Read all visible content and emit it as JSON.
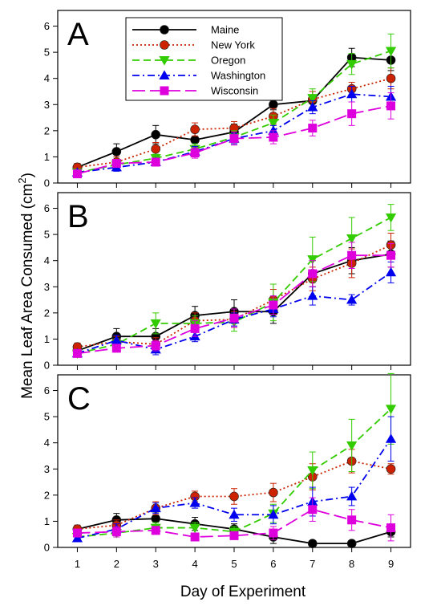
{
  "chart_data": {
    "type": "line",
    "xlabel": "Day of Experiment",
    "ylabel": "Mean Leaf Area Consumed (cm",
    "ylabel_superscript": "2",
    "ylabel_suffix": ")",
    "x": [
      1,
      2,
      3,
      4,
      5,
      6,
      7,
      8,
      9
    ],
    "x_tick_labels": [
      "1",
      "2",
      "3",
      "4",
      "5",
      "6",
      "7",
      "8",
      "9"
    ],
    "ylim": [
      0,
      6.6
    ],
    "y_ticks": [
      0,
      1,
      2,
      3,
      4,
      5,
      6
    ],
    "y_tick_labels": [
      "0",
      "1",
      "2",
      "3",
      "4",
      "5",
      "6"
    ],
    "legend": {
      "position": "top-left",
      "entries": [
        "Maine",
        "New York",
        "Oregon",
        "Washington",
        "Wisconsin"
      ]
    },
    "series_styles": [
      {
        "name": "Maine",
        "color": "#000000",
        "marker": "circle",
        "dash": "none"
      },
      {
        "name": "New York",
        "color": "#cc2200",
        "marker": "circle",
        "dash": "dotted"
      },
      {
        "name": "Oregon",
        "color": "#33cc00",
        "marker": "triangle-down",
        "dash": "dashed"
      },
      {
        "name": "Washington",
        "color": "#0000ee",
        "marker": "triangle-up",
        "dash": "dashdot"
      },
      {
        "name": "Wisconsin",
        "color": "#dd00dd",
        "marker": "square",
        "dash": "longdash"
      }
    ],
    "panels": [
      {
        "label": "A",
        "show_legend": true,
        "series": [
          {
            "name": "Maine",
            "values": [
              0.6,
              1.2,
              1.85,
              1.65,
              1.95,
              3.0,
              3.15,
              4.8,
              4.7
            ],
            "errors": [
              0.15,
              0.3,
              0.35,
              0.3,
              0.3,
              0.2,
              0.35,
              0.35,
              0.4
            ]
          },
          {
            "name": "New York",
            "values": [
              0.6,
              0.8,
              1.3,
              2.05,
              2.1,
              2.55,
              3.2,
              3.6,
              4.0
            ],
            "errors": [
              0.15,
              0.2,
              0.25,
              0.25,
              0.25,
              0.3,
              0.3,
              0.25,
              0.4
            ]
          },
          {
            "name": "Oregon",
            "values": [
              0.4,
              0.7,
              0.95,
              1.3,
              1.75,
              2.3,
              3.25,
              4.55,
              5.05
            ],
            "errors": [
              0.1,
              0.15,
              0.15,
              0.2,
              0.25,
              0.3,
              0.35,
              0.4,
              0.65
            ]
          },
          {
            "name": "Washington",
            "values": [
              0.4,
              0.6,
              0.8,
              1.2,
              1.7,
              2.0,
              2.9,
              3.4,
              3.3
            ],
            "errors": [
              0.1,
              0.15,
              0.15,
              0.2,
              0.2,
              0.2,
              0.25,
              0.3,
              0.4
            ]
          },
          {
            "name": "Wisconsin",
            "values": [
              0.35,
              0.75,
              0.8,
              1.15,
              1.7,
              1.75,
              2.1,
              2.65,
              2.95
            ],
            "errors": [
              0.1,
              0.15,
              0.15,
              0.2,
              0.25,
              0.25,
              0.3,
              0.45,
              0.5
            ]
          }
        ]
      },
      {
        "label": "B",
        "show_legend": false,
        "series": [
          {
            "name": "Maine",
            "values": [
              0.55,
              1.1,
              1.1,
              1.9,
              2.05,
              2.05,
              3.5,
              4.0,
              4.25
            ],
            "errors": [
              0.15,
              0.3,
              0.3,
              0.35,
              0.45,
              0.45,
              0.5,
              0.5,
              0.5
            ]
          },
          {
            "name": "New York",
            "values": [
              0.7,
              0.9,
              0.8,
              1.7,
              1.75,
              2.5,
              3.3,
              3.9,
              4.6
            ],
            "errors": [
              0.15,
              0.2,
              0.25,
              0.3,
              0.3,
              0.4,
              0.45,
              0.55,
              0.45
            ]
          },
          {
            "name": "Oregon",
            "values": [
              0.45,
              0.8,
              1.6,
              1.6,
              1.65,
              2.4,
              4.05,
              4.85,
              5.65
            ],
            "errors": [
              0.1,
              0.2,
              0.4,
              0.3,
              0.35,
              0.7,
              0.85,
              0.8,
              0.5
            ]
          },
          {
            "name": "Washington",
            "values": [
              0.45,
              0.95,
              0.6,
              1.1,
              1.75,
              2.15,
              2.65,
              2.5,
              3.55
            ],
            "errors": [
              0.1,
              0.2,
              0.2,
              0.2,
              0.25,
              0.3,
              0.35,
              0.2,
              0.4
            ]
          },
          {
            "name": "Wisconsin",
            "values": [
              0.45,
              0.65,
              0.75,
              1.4,
              1.8,
              2.3,
              3.5,
              4.2,
              4.2
            ],
            "errors": [
              0.1,
              0.15,
              0.2,
              0.3,
              0.35,
              0.35,
              0.5,
              0.5,
              0.45
            ]
          }
        ]
      },
      {
        "label": "C",
        "show_legend": false,
        "series": [
          {
            "name": "Maine",
            "values": [
              0.7,
              1.05,
              1.1,
              0.9,
              0.7,
              0.4,
              0.15,
              0.15,
              0.6
            ],
            "errors": [
              0.15,
              0.25,
              0.25,
              0.25,
              0.2,
              0.25,
              0.1,
              0.1,
              0.2
            ]
          },
          {
            "name": "New York",
            "values": [
              0.7,
              0.85,
              1.5,
              1.95,
              1.95,
              2.1,
              2.7,
              3.3,
              3.0
            ],
            "errors": [
              0.15,
              0.2,
              0.25,
              0.2,
              0.3,
              0.35,
              0.5,
              0.45,
              0.2
            ]
          },
          {
            "name": "Oregon",
            "values": [
              0.4,
              0.55,
              0.75,
              0.75,
              0.6,
              1.3,
              2.95,
              3.9,
              5.3
            ],
            "errors": [
              0.1,
              0.15,
              0.2,
              0.2,
              0.2,
              0.35,
              0.7,
              1.0,
              1.35
            ]
          },
          {
            "name": "Washington",
            "values": [
              0.35,
              0.7,
              1.5,
              1.7,
              1.25,
              1.25,
              1.75,
              1.95,
              4.15
            ],
            "errors": [
              0.1,
              0.2,
              0.2,
              0.2,
              0.25,
              0.35,
              0.55,
              0.35,
              0.85
            ]
          },
          {
            "name": "Wisconsin",
            "values": [
              0.55,
              0.6,
              0.65,
              0.4,
              0.45,
              0.55,
              1.45,
              1.05,
              0.75
            ],
            "errors": [
              0.15,
              0.2,
              0.15,
              0.15,
              0.15,
              0.25,
              0.45,
              0.4,
              0.5
            ]
          }
        ]
      }
    ]
  }
}
